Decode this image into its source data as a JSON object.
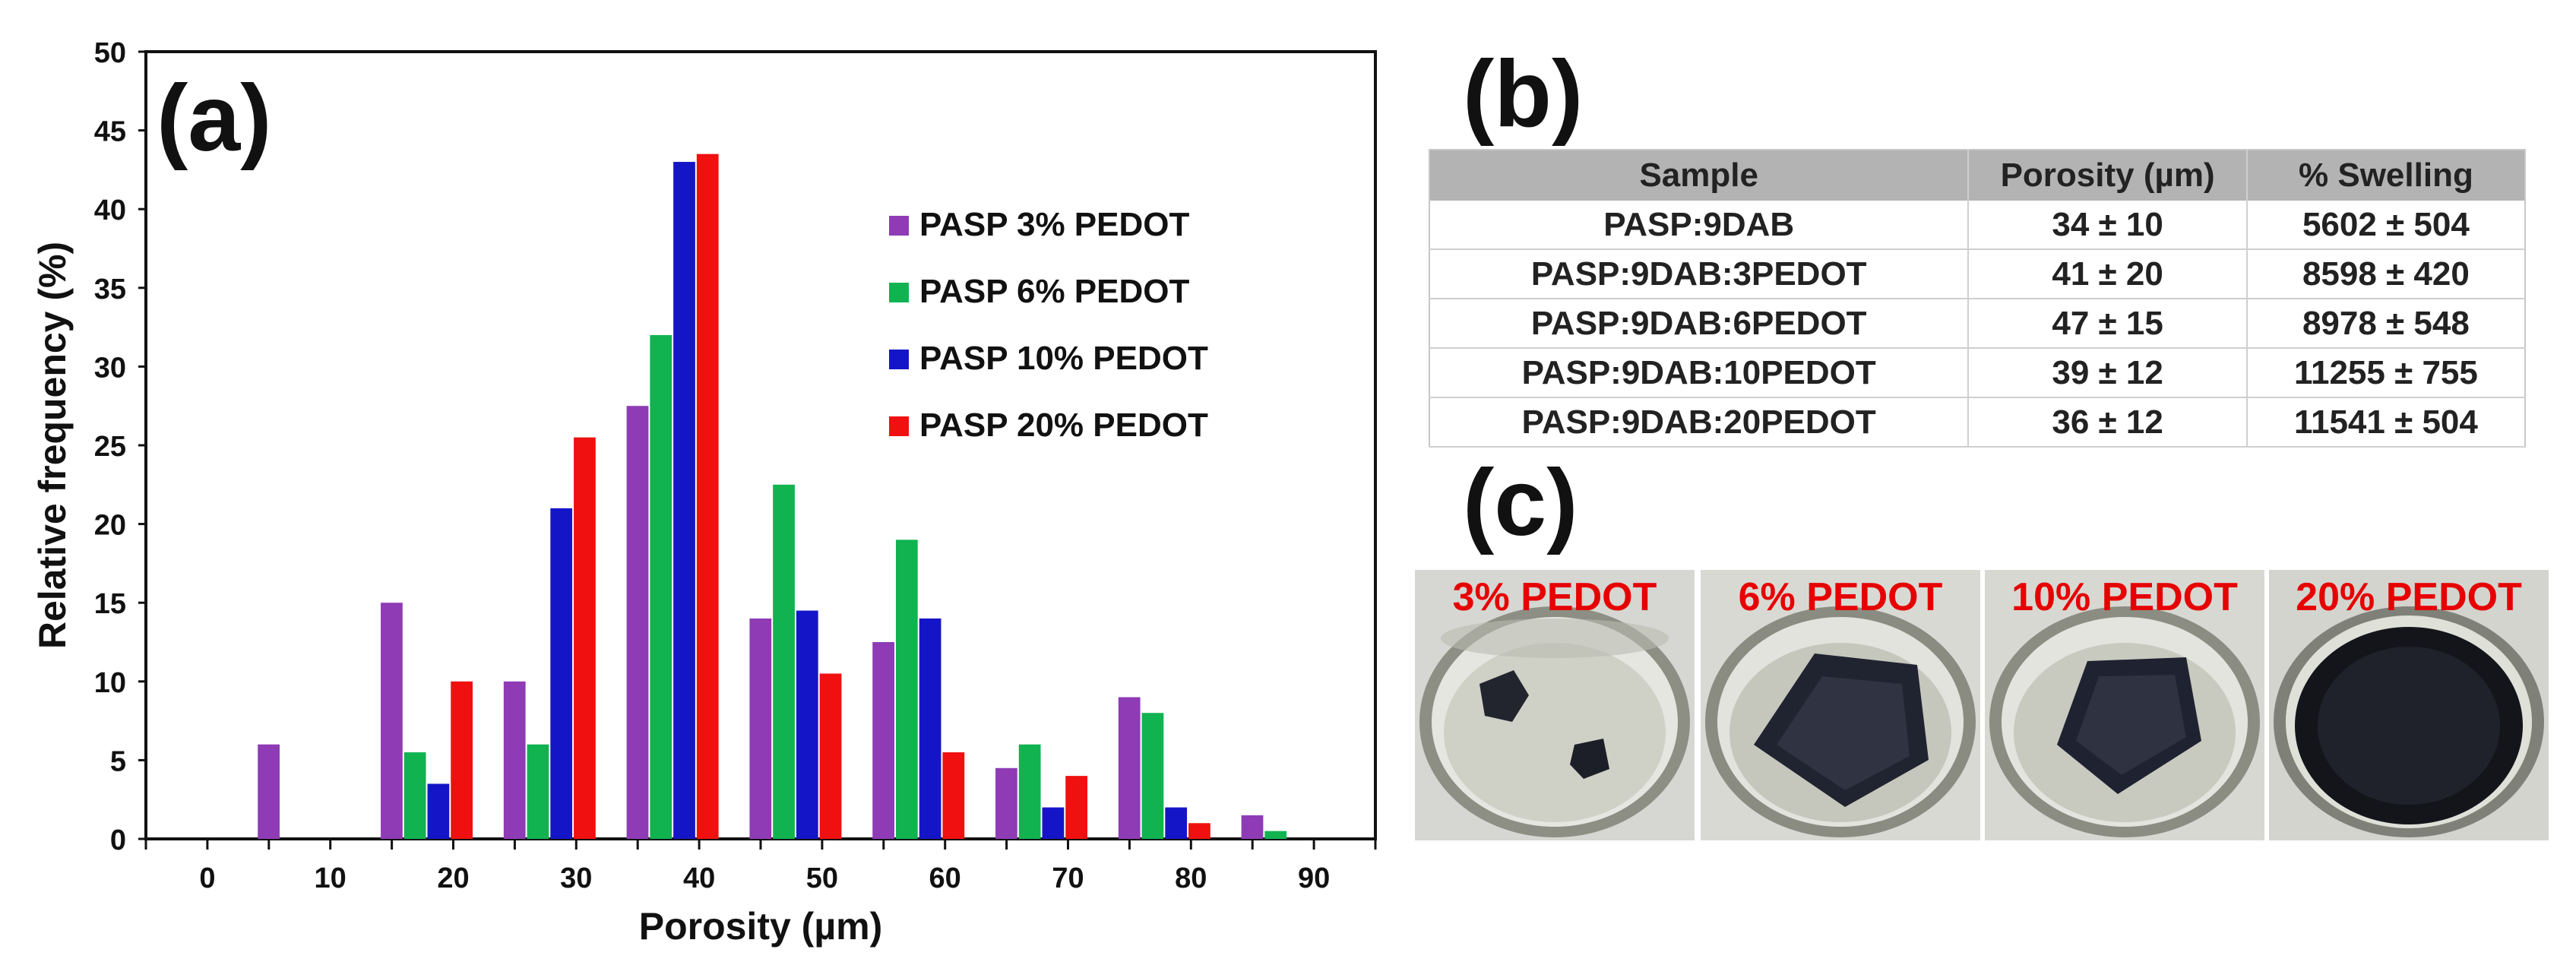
{
  "chart_data": {
    "type": "bar",
    "panel_label": "(a)",
    "title": "",
    "xlabel": "Porosity (µm)",
    "ylabel": "Relative frequency (%)",
    "xlim": [
      -5,
      95
    ],
    "ylim": [
      0,
      50
    ],
    "x_ticks": [
      "0",
      "10",
      "20",
      "30",
      "40",
      "50",
      "60",
      "70",
      "80",
      "90"
    ],
    "y_ticks": [
      "0",
      "5",
      "10",
      "15",
      "20",
      "25",
      "30",
      "35",
      "40",
      "45",
      "50"
    ],
    "bin_centers": [
      10,
      20,
      30,
      40,
      50,
      60,
      70,
      80,
      90
    ],
    "grid": false,
    "legend_position": "right",
    "series": [
      {
        "name": "PASP 3% PEDOT",
        "color": "#8e3bb5",
        "values": [
          6,
          15,
          10,
          27.5,
          14,
          12.5,
          4.5,
          9,
          1.5
        ]
      },
      {
        "name": "PASP 6% PEDOT",
        "color": "#10b350",
        "values": [
          0,
          5.5,
          6,
          32,
          22.5,
          19,
          6,
          8,
          0.5
        ]
      },
      {
        "name": "PASP 10% PEDOT",
        "color": "#1515c8",
        "values": [
          0,
          3.5,
          21,
          43,
          14.5,
          14,
          2,
          2,
          0
        ]
      },
      {
        "name": "PASP 20% PEDOT",
        "color": "#f01010",
        "values": [
          0,
          10,
          25.5,
          43.5,
          10.5,
          5.5,
          4,
          1,
          0
        ]
      }
    ]
  },
  "table": {
    "panel_label": "(b)",
    "headers": [
      "Sample",
      "Porosity (µm)",
      "% Swelling"
    ],
    "rows": [
      [
        "PASP:9DAB",
        "34 ± 10",
        "5602 ± 504"
      ],
      [
        "PASP:9DAB:3PEDOT",
        "41 ± 20",
        "8598 ± 420"
      ],
      [
        "PASP:9DAB:6PEDOT",
        "47 ± 15",
        "8978 ± 548"
      ],
      [
        "PASP:9DAB:10PEDOT",
        "39 ± 12",
        "11255 ± 755"
      ],
      [
        "PASP:9DAB:20PEDOT",
        "36 ± 12",
        "11541 ± 504"
      ]
    ]
  },
  "photos": {
    "panel_label": "(c)",
    "captions": [
      "3% PEDOT",
      "6% PEDOT",
      "10% PEDOT",
      "20% PEDOT"
    ]
  }
}
